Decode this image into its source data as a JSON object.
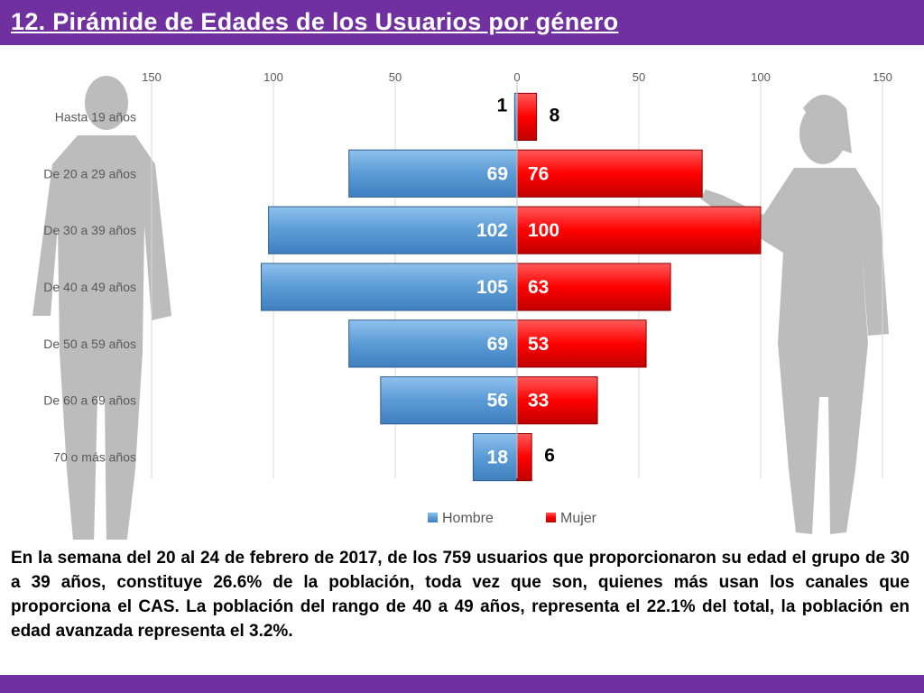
{
  "header": {
    "title": "12. Pirámide de Edades de los Usuarios por género"
  },
  "chart_data": {
    "type": "bar",
    "orientation": "horizontal-pyramid",
    "categories": [
      "Hasta 19 años",
      "De 20 a 29 años",
      "De 30 a 39 años",
      "De 40 a 49 años",
      "De 50 a 59 años",
      "De 60 a 69 años",
      "70 o más años"
    ],
    "series": [
      {
        "name": "Hombre",
        "values": [
          1,
          69,
          102,
          105,
          69,
          56,
          18
        ],
        "color": "#5b9bd5"
      },
      {
        "name": "Mujer",
        "values": [
          8,
          76,
          100,
          63,
          53,
          33,
          6
        ],
        "color": "#ff0000"
      }
    ],
    "x_ticks": [
      "150",
      "100",
      "50",
      "0",
      "50",
      "100",
      "150"
    ],
    "xlim": [
      -150,
      150
    ],
    "grid": true,
    "legend_position": "bottom"
  },
  "caption": "En la semana del 20 al 24 de febrero de 2017, de los 759 usuarios  que proporcionaron su edad el grupo de 30 a 39 años,  constituye 26.6% de la población, toda vez que son, quienes más usan los canales que proporciona el CAS. La población del rango de 40 a 49 años, representa el 22.1% del total, la población en edad avanzada representa el 3.2%."
}
